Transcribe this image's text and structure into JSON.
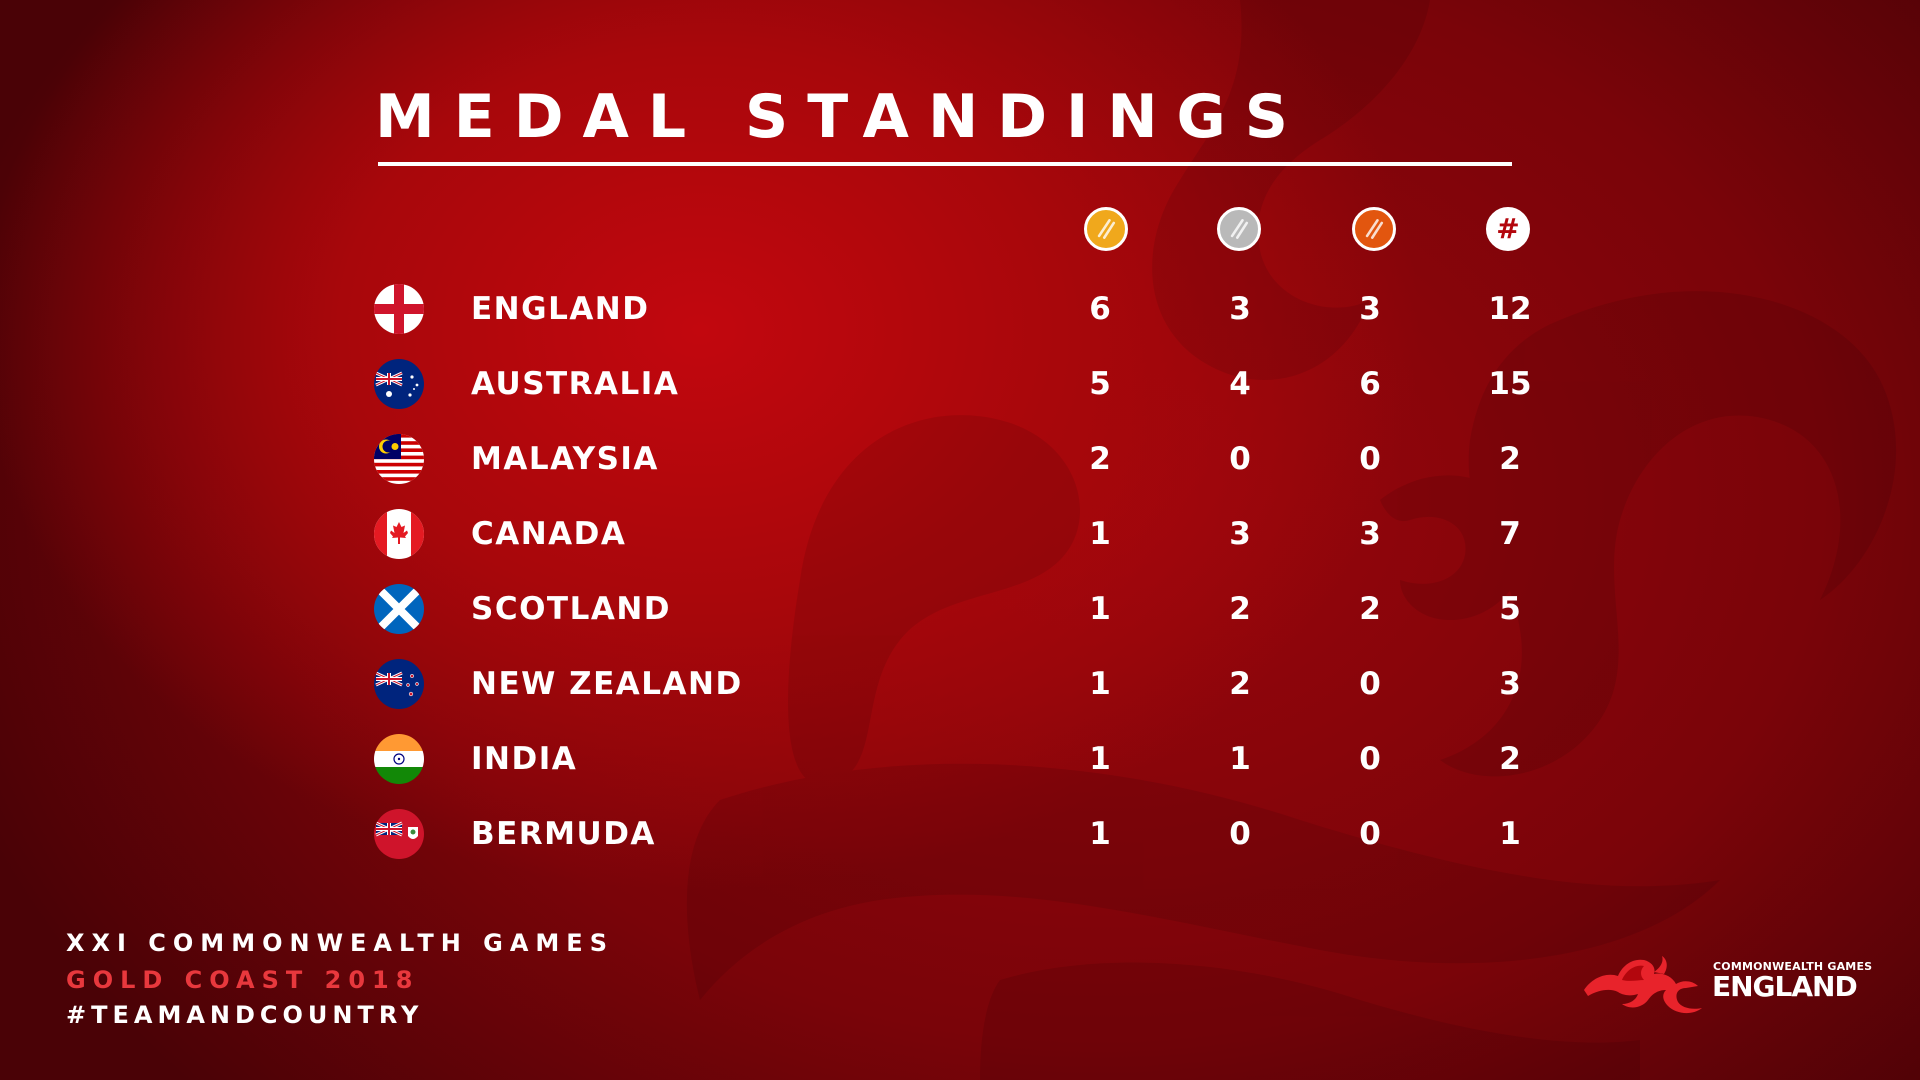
{
  "title": "MEDAL STANDINGS",
  "columns": {
    "gold_icon": "gold-medal-icon",
    "silver_icon": "silver-medal-icon",
    "bronze_icon": "bronze-medal-icon",
    "total_symbol": "#"
  },
  "rows": [
    {
      "country": "ENGLAND",
      "flag": "england-flag-icon",
      "gold": "6",
      "silver": "3",
      "bronze": "3",
      "total": "12"
    },
    {
      "country": "AUSTRALIA",
      "flag": "australia-flag-icon",
      "gold": "5",
      "silver": "4",
      "bronze": "6",
      "total": "15"
    },
    {
      "country": "MALAYSIA",
      "flag": "malaysia-flag-icon",
      "gold": "2",
      "silver": "0",
      "bronze": "0",
      "total": "2"
    },
    {
      "country": "CANADA",
      "flag": "canada-flag-icon",
      "gold": "1",
      "silver": "3",
      "bronze": "3",
      "total": "7"
    },
    {
      "country": "SCOTLAND",
      "flag": "scotland-flag-icon",
      "gold": "1",
      "silver": "2",
      "bronze": "2",
      "total": "5"
    },
    {
      "country": "NEW ZEALAND",
      "flag": "new-zealand-flag-icon",
      "gold": "1",
      "silver": "2",
      "bronze": "0",
      "total": "3"
    },
    {
      "country": "INDIA",
      "flag": "india-flag-icon",
      "gold": "1",
      "silver": "1",
      "bronze": "0",
      "total": "2"
    },
    {
      "country": "BERMUDA",
      "flag": "bermuda-flag-icon",
      "gold": "1",
      "silver": "0",
      "bronze": "0",
      "total": "1"
    }
  ],
  "footer": {
    "line1": "XXI COMMONWEALTH GAMES",
    "line2": "GOLD COAST 2018",
    "line3": "#TEAMANDCOUNTRY"
  },
  "logo": {
    "small": "COMMONWEALTH GAMES",
    "big": "ENGLAND"
  },
  "colors": {
    "background": "#a8070b",
    "gold": "#f0a81c",
    "silver": "#b9b9b9",
    "bronze": "#e2560f",
    "accent_text": "#e8383d"
  }
}
